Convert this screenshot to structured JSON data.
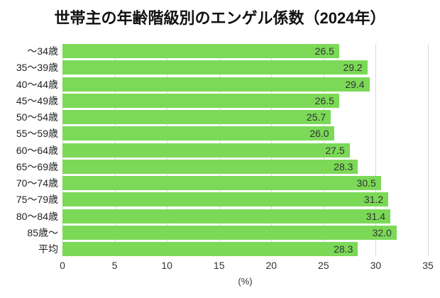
{
  "chart_data": {
    "type": "bar",
    "orientation": "horizontal",
    "title": "世帯主の年齢階級別のエンゲル係数（2024年）",
    "categories": [
      "～34歳",
      "35～39歳",
      "40～44歳",
      "45～49歳",
      "50～54歳",
      "55～59歳",
      "60～64歳",
      "65～69歳",
      "70～74歳",
      "75～79歳",
      "80～84歳",
      "85歳～",
      "平均"
    ],
    "values": [
      26.5,
      29.2,
      29.4,
      26.5,
      25.7,
      26.0,
      27.5,
      28.3,
      30.5,
      31.2,
      31.4,
      32.0,
      28.3
    ],
    "value_decimals": 1,
    "xlabel": "(%)",
    "xlim": [
      0,
      35
    ],
    "xticks": [
      0,
      5,
      10,
      15,
      20,
      25,
      30,
      35
    ],
    "grid": true,
    "legend_position": "none",
    "colors": {
      "bar": "#7bd957",
      "gridline": "#d9d9d9",
      "value_label": "#333333",
      "category_label": "#1f1f1f",
      "tick_label": "#333333",
      "title": "#111111"
    }
  }
}
